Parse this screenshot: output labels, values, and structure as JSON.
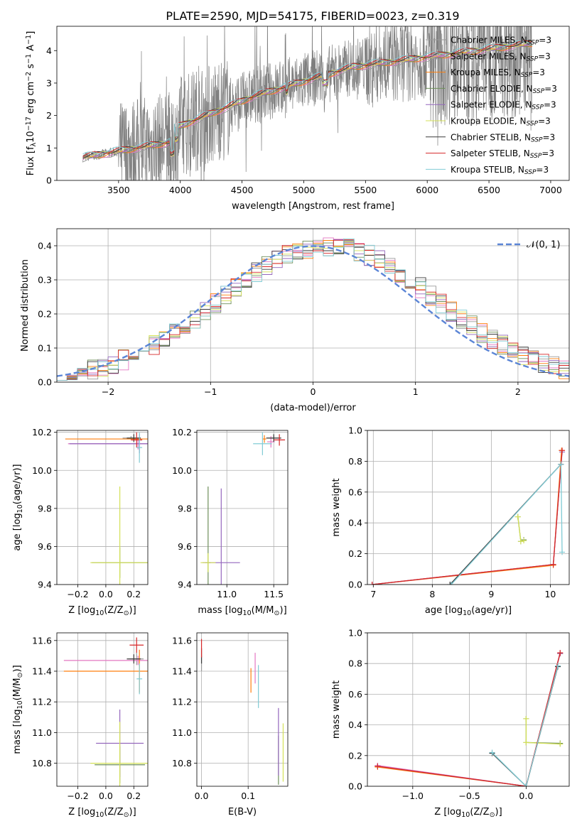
{
  "title": "PLATE=2590, MJD=54175, FIBERID=0023, z=0.319",
  "models": [
    {
      "name": "Chabrier MILES",
      "color": "#9a9a9a"
    },
    {
      "name": "Salpeter MILES",
      "color": "#e377c2"
    },
    {
      "name": "Kroupa MILES",
      "color": "#ff7f0e"
    },
    {
      "name": "Chabrier ELODIE",
      "color": "#6e8f5a"
    },
    {
      "name": "Salpeter ELODIE",
      "color": "#9467bd"
    },
    {
      "name": "Kroupa ELODIE",
      "color": "#d4e157"
    },
    {
      "name": "Chabrier STELIB",
      "color": "#3a3a3a"
    },
    {
      "name": "Salpeter STELIB",
      "color": "#d62728"
    },
    {
      "name": "Kroupa STELIB",
      "color": "#80cbd4"
    }
  ],
  "legend_suffix": "N",
  "legend_sub": "SSP",
  "legend_tail": "=3",
  "chart_data": [
    {
      "id": "spectrum",
      "type": "line",
      "xlabel": "wavelength [Angstrom, rest frame]",
      "ylabel": "Flux [f",
      "ylabel_sub": "λ",
      "ylabel_mid": "10",
      "ylabel_sup": "−17",
      "ylabel_tail1": " erg cm",
      "ylabel_sup2": "−2",
      "ylabel_tail2": " s",
      "ylabel_sup3": "−1",
      "ylabel_tail3": " A",
      "ylabel_sup4": "−1",
      "ylabel_end": "]",
      "xlim": [
        3000,
        7150
      ],
      "ylim": [
        0,
        4.75
      ],
      "xticks": [
        3500,
        4000,
        4500,
        5000,
        5500,
        6000,
        6500,
        7000
      ],
      "yticks": [
        0,
        1,
        2,
        3,
        4
      ],
      "data_color": "#7f7f7f",
      "legend": "top-right",
      "grid": false
    },
    {
      "id": "residuals",
      "type": "histogram",
      "xlabel": "(data-model)/error",
      "ylabel": "Normed distribution",
      "xlim": [
        -2.5,
        2.5
      ],
      "ylim": [
        0,
        0.45
      ],
      "xticks": [
        -2,
        -1,
        0,
        1,
        2
      ],
      "yticks": [
        0.0,
        0.1,
        0.2,
        0.3,
        0.4
      ],
      "gaussian_label": "𝒩(0, 1)",
      "gaussian_color": "#5b85d6",
      "grid": true,
      "legend": "top-right"
    },
    {
      "id": "age_vs_z",
      "type": "errorbar",
      "xlabel": "Z [log",
      "xlabel_sub": "10",
      "xlabel_tail": "(Z/Z",
      "xlabel_sub2": "⊙",
      "xlabel_end": ")]",
      "ylabel": "age  [log",
      "ylabel_sub": "10",
      "ylabel_tail": "(age/yr)]",
      "xlim": [
        -0.35,
        0.3
      ],
      "ylim": [
        9.4,
        10.21
      ],
      "xticks": [
        -0.2,
        0.0,
        0.2
      ],
      "yticks": [
        9.4,
        9.6,
        9.8,
        10.0,
        10.2
      ]
    },
    {
      "id": "age_vs_mass",
      "type": "errorbar",
      "xlabel": "mass [log",
      "xlabel_sub": "10",
      "xlabel_tail": "(M/M",
      "xlabel_sub2": "⊙",
      "xlabel_end": ")]",
      "xlim": [
        10.68,
        11.65
      ],
      "ylim": [
        9.4,
        10.21
      ],
      "xticks": [
        11.0,
        11.5
      ],
      "yticks": [
        9.4,
        9.6,
        9.8,
        10.0,
        10.2
      ]
    },
    {
      "id": "weight_vs_age",
      "type": "line",
      "xlabel": "age  [log",
      "xlabel_sub": "10",
      "xlabel_tail": "(age/yr)]",
      "ylabel": "mass weight",
      "xlim": [
        6.9,
        10.32
      ],
      "ylim": [
        0,
        1.0
      ],
      "xticks": [
        7,
        8,
        9,
        10
      ],
      "yticks": [
        0.0,
        0.2,
        0.4,
        0.6,
        0.8,
        1.0
      ]
    },
    {
      "id": "mass_vs_z",
      "type": "errorbar",
      "xlabel": "Z [log",
      "xlabel_sub": "10",
      "xlabel_tail": "(Z/Z",
      "xlabel_sub2": "⊙",
      "xlabel_end": ")]",
      "ylabel": "mass [log",
      "ylabel_sub": "10",
      "ylabel_tail": "(M/M",
      "ylabel_sub2": "⊙",
      "ylabel_end": ")]",
      "xlim": [
        -0.35,
        0.3
      ],
      "ylim": [
        10.65,
        11.65
      ],
      "xticks": [
        -0.2,
        0.0,
        0.2
      ],
      "yticks": [
        10.8,
        11.0,
        11.2,
        11.4,
        11.6
      ]
    },
    {
      "id": "mass_vs_ebv",
      "type": "errorbar",
      "xlabel": "E(B-V)",
      "xlim": [
        -0.01,
        0.185
      ],
      "ylim": [
        10.65,
        11.65
      ],
      "xticks": [
        0.0,
        0.1
      ],
      "yticks": [
        10.8,
        11.0,
        11.2,
        11.4,
        11.6
      ]
    },
    {
      "id": "weight_vs_z",
      "type": "line",
      "xlabel": "Z [log",
      "xlabel_sub": "10",
      "xlabel_tail": "(Z/Z",
      "xlabel_sub2": "⊙",
      "xlabel_end": ")]",
      "ylabel": "mass weight",
      "xlim": [
        -1.4,
        0.38
      ],
      "ylim": [
        0,
        1.0
      ],
      "xticks": [
        -1.0,
        -0.5,
        0.0
      ],
      "yticks": [
        0.0,
        0.2,
        0.4,
        0.6,
        0.8,
        1.0
      ]
    }
  ],
  "points": {
    "age_vs_z": [
      {
        "m": 0,
        "x": 0.18,
        "xe": 0.06,
        "y": 10.17,
        "ye": 0.01
      },
      {
        "m": 1,
        "x": 0.23,
        "xe": 0.5,
        "y": 10.14,
        "ye": 0.03
      },
      {
        "m": 2,
        "x": 0.24,
        "xe": 0.53,
        "y": 10.165,
        "ye": 0.01
      },
      {
        "m": 3,
        "x": 0.1,
        "xe": 0.2,
        "y": 9.515,
        "ye": 0.08
      },
      {
        "m": 4,
        "x": 0.24,
        "xe": 0.5,
        "y": 10.14,
        "ye": 0.05
      },
      {
        "m": 5,
        "x": 0.1,
        "xe": 0.21,
        "y": 9.515,
        "ye": 0.4
      },
      {
        "m": 6,
        "x": 0.2,
        "xe": 0.05,
        "y": 10.17,
        "ye": 0.02
      },
      {
        "m": 7,
        "x": 0.22,
        "xe": 0.04,
        "y": 10.16,
        "ye": 0.04
      },
      {
        "m": 8,
        "x": 0.24,
        "xe": 0.02,
        "y": 10.12,
        "ye": 0.08
      }
    ],
    "age_vs_mass": [
      {
        "m": 0,
        "x": 11.5,
        "xe": 0.07,
        "y": 10.17,
        "ye": 0.01
      },
      {
        "m": 1,
        "x": 11.47,
        "xe": 0.04,
        "y": 10.15,
        "ye": 0.03
      },
      {
        "m": 2,
        "x": 11.4,
        "xe": 0.02,
        "y": 10.165,
        "ye": 0.02
      },
      {
        "m": 3,
        "x": 10.8,
        "xe": 0.03,
        "y": 9.515,
        "ye": 0.4
      },
      {
        "m": 4,
        "x": 10.94,
        "xe": 0.2,
        "y": 9.515,
        "ye": 0.39
      },
      {
        "m": 5,
        "x": 10.8,
        "xe": 0.08,
        "y": 9.515,
        "ye": 0.05
      },
      {
        "m": 6,
        "x": 11.5,
        "xe": 0.08,
        "y": 10.17,
        "ye": 0.02
      },
      {
        "m": 7,
        "x": 11.56,
        "xe": 0.06,
        "y": 10.16,
        "ye": 0.03
      },
      {
        "m": 8,
        "x": 11.38,
        "xe": 0.1,
        "y": 10.14,
        "ye": 0.06
      }
    ],
    "mass_vs_z": [
      {
        "m": 0,
        "x": 0.22,
        "xe": 0.05,
        "y": 11.48,
        "ye": 0.04
      },
      {
        "m": 1,
        "x": 0.23,
        "xe": 0.53,
        "y": 11.47,
        "ye": 0.03
      },
      {
        "m": 2,
        "x": 0.24,
        "xe": 0.54,
        "y": 11.4,
        "ye": 0.14
      },
      {
        "m": 3,
        "x": 0.1,
        "xe": 0.18,
        "y": 10.79,
        "ye": 0.12
      },
      {
        "m": 4,
        "x": 0.1,
        "xe": 0.17,
        "y": 10.93,
        "ye": 0.22
      },
      {
        "m": 5,
        "x": 0.1,
        "xe": 0.21,
        "y": 10.8,
        "ye": 0.27
      },
      {
        "m": 6,
        "x": 0.2,
        "xe": 0.05,
        "y": 11.48,
        "ye": 0.03
      },
      {
        "m": 7,
        "x": 0.22,
        "xe": 0.05,
        "y": 11.57,
        "ye": 0.05
      },
      {
        "m": 8,
        "x": 0.24,
        "xe": 0.02,
        "y": 11.35,
        "ye": 0.1
      }
    ],
    "mass_vs_ebv": [
      {
        "m": 0,
        "x": 0.0,
        "xe": 0.0,
        "y": 11.45,
        "ye": 0.05
      },
      {
        "m": 1,
        "x": 0.115,
        "xe": 0.0,
        "y": 11.42,
        "ye": 0.1
      },
      {
        "m": 2,
        "x": 0.106,
        "xe": 0.0,
        "y": 11.34,
        "ye": 0.08
      },
      {
        "m": 3,
        "x": 0.165,
        "xe": 0.0,
        "y": 10.82,
        "ye": 0.16
      },
      {
        "m": 4,
        "x": 0.165,
        "xe": 0.0,
        "y": 10.94,
        "ye": 0.22
      },
      {
        "m": 5,
        "x": 0.175,
        "xe": 0.0,
        "y": 10.87,
        "ye": 0.19
      },
      {
        "m": 6,
        "x": 0.0,
        "xe": 0.0,
        "y": 11.5,
        "ye": 0.05
      },
      {
        "m": 7,
        "x": 0.0,
        "xe": 0.0,
        "y": 11.55,
        "ye": 0.06
      },
      {
        "m": 8,
        "x": 0.122,
        "xe": 0.0,
        "y": 11.3,
        "ye": 0.14
      }
    ],
    "weight_vs_age": [
      {
        "m": 0,
        "pts": [
          [
            8.3,
            0.0
          ],
          [
            10.18,
            0.78
          ]
        ]
      },
      {
        "m": 1,
        "pts": [
          [
            6.98,
            0.0
          ],
          [
            10.05,
            0.13
          ],
          [
            10.2,
            0.87
          ]
        ]
      },
      {
        "m": 2,
        "pts": [
          [
            6.98,
            0.0
          ],
          [
            10.05,
            0.125
          ],
          [
            10.19,
            0.87
          ]
        ]
      },
      {
        "m": 3,
        "pts": [
          [
            9.45,
            0.44
          ],
          [
            9.5,
            0.28
          ],
          [
            9.55,
            0.29
          ]
        ]
      },
      {
        "m": 4,
        "pts": [
          [
            6.98,
            0.0
          ],
          [
            10.05,
            0.13
          ],
          [
            10.2,
            0.86
          ]
        ]
      },
      {
        "m": 5,
        "pts": [
          [
            9.45,
            0.44
          ],
          [
            9.5,
            0.28
          ],
          [
            9.55,
            0.285
          ]
        ]
      },
      {
        "m": 6,
        "pts": [
          [
            8.3,
            0.0
          ],
          [
            10.18,
            0.78
          ]
        ]
      },
      {
        "m": 7,
        "pts": [
          [
            6.98,
            0.0
          ],
          [
            10.05,
            0.13
          ],
          [
            10.2,
            0.87
          ]
        ]
      },
      {
        "m": 8,
        "pts": [
          [
            8.32,
            0.0
          ],
          [
            10.18,
            0.78
          ],
          [
            10.2,
            0.21
          ]
        ]
      }
    ],
    "weight_vs_z": [
      {
        "m": 0,
        "pts": [
          [
            -1.31,
            0.13
          ],
          [
            0.0,
            0.0
          ],
          [
            0.28,
            0.78
          ]
        ]
      },
      {
        "m": 1,
        "pts": [
          [
            -1.31,
            0.135
          ],
          [
            0.0,
            0.0
          ],
          [
            0.3,
            0.87
          ]
        ]
      },
      {
        "m": 2,
        "pts": [
          [
            -1.31,
            0.125
          ],
          [
            0.0,
            0.0
          ],
          [
            0.3,
            0.865
          ]
        ]
      },
      {
        "m": 3,
        "pts": [
          [
            0.0,
            0.44
          ],
          [
            0.0,
            0.285
          ],
          [
            0.3,
            0.28
          ]
        ]
      },
      {
        "m": 4,
        "pts": [
          [
            -1.31,
            0.13
          ],
          [
            0.0,
            0.0
          ],
          [
            0.3,
            0.865
          ]
        ]
      },
      {
        "m": 5,
        "pts": [
          [
            0.0,
            0.44
          ],
          [
            0.0,
            0.285
          ],
          [
            0.3,
            0.275
          ]
        ]
      },
      {
        "m": 6,
        "pts": [
          [
            -0.3,
            0.215
          ],
          [
            0.0,
            0.0
          ],
          [
            0.28,
            0.78
          ]
        ]
      },
      {
        "m": 7,
        "pts": [
          [
            -1.31,
            0.13
          ],
          [
            0.0,
            0.0
          ],
          [
            0.3,
            0.87
          ]
        ]
      },
      {
        "m": 8,
        "pts": [
          [
            -0.3,
            0.22
          ],
          [
            0.0,
            0.0
          ],
          [
            0.28,
            0.785
          ]
        ]
      }
    ]
  }
}
